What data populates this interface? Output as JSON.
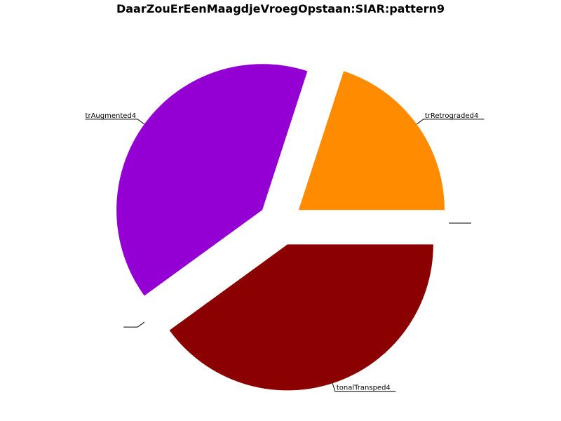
{
  "chart_data": {
    "type": "pie",
    "title": "DaarZouErEenMaagdjeVroegOpstaan:SIAR:pattern9",
    "slices": [
      {
        "label": "trRetrograded4",
        "value": 0.2,
        "color": "#ff8c00",
        "exploded": true
      },
      {
        "label": "trAugmented4",
        "value": 0.4,
        "color": "#9400d3",
        "exploded": true
      },
      {
        "label": "",
        "value": 0.0,
        "color": "#ffffff",
        "exploded": true
      },
      {
        "label": "tonalTransped4",
        "value": 0.4,
        "color": "#8b0000",
        "exploded": true
      },
      {
        "label": "",
        "value": 0.0,
        "color": "#ffffff",
        "exploded": true
      }
    ],
    "start_angle_deg": 0,
    "direction": "counterclockwise",
    "legend": "none"
  }
}
